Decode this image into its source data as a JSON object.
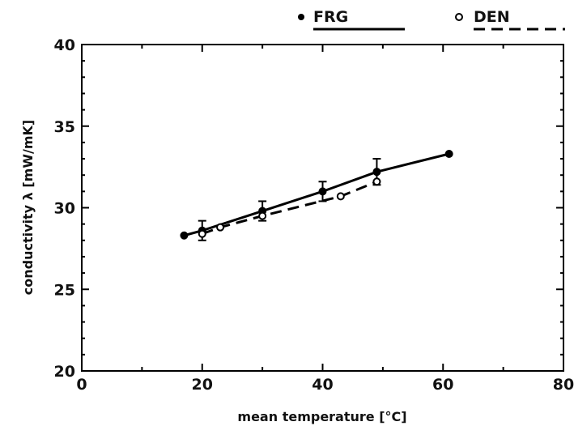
{
  "chart_data": {
    "type": "line",
    "xlabel": "mean temperature [°C]",
    "ylabel": "conductivity λ [mW/mK]",
    "xlim": [
      0,
      80
    ],
    "ylim": [
      20,
      40
    ],
    "x_ticks": [
      0,
      20,
      40,
      60,
      80
    ],
    "y_ticks": [
      20,
      25,
      30,
      35,
      40
    ],
    "grid": false,
    "legend_position": "top, above plot",
    "series": [
      {
        "name": "FRG",
        "marker": "filled circle",
        "line_style": "solid",
        "x": [
          17,
          20,
          30,
          40,
          49,
          61
        ],
        "y": [
          28.3,
          28.6,
          29.8,
          31.0,
          32.2,
          33.3
        ],
        "error": [
          null,
          0.6,
          0.6,
          0.6,
          0.8,
          null
        ]
      },
      {
        "name": "DEN",
        "marker": "open circle",
        "line_style": "dashed",
        "x": [
          20,
          23,
          30,
          43,
          49
        ],
        "y": [
          28.4,
          28.8,
          29.5,
          30.7,
          31.6
        ],
        "error": [
          null,
          null,
          null,
          null,
          null
        ]
      }
    ]
  }
}
